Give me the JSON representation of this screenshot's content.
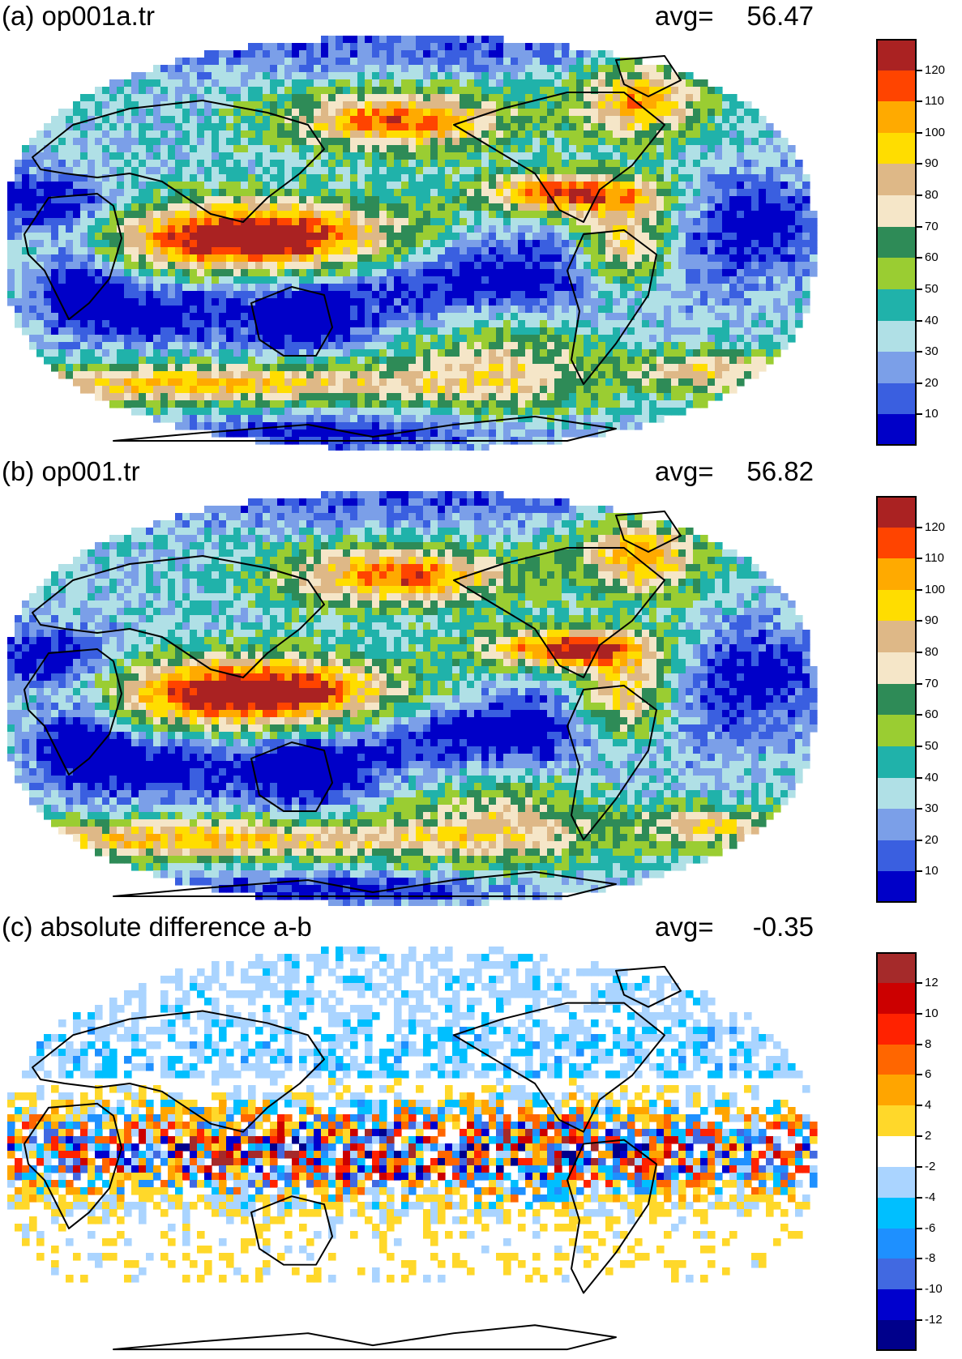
{
  "panels": [
    {
      "title": "(a) op001a.tr",
      "avg_label": "avg=",
      "avg_value": "56.47",
      "field": "a"
    },
    {
      "title": "(b) op001.tr",
      "avg_label": "avg=",
      "avg_value": "56.82",
      "field": "b"
    },
    {
      "title": "(c) absolute difference a-b",
      "avg_label": "avg=",
      "avg_value": "-0.35",
      "field": "diff"
    }
  ],
  "colorbars": {
    "abs": {
      "labels": [
        "120",
        "110",
        "100",
        "90",
        "80",
        "70",
        "60",
        "50",
        "40",
        "30",
        "20",
        "10"
      ],
      "colors": [
        "#aa2222",
        "#ff4400",
        "#ffaa00",
        "#ffdd00",
        "#deb887",
        "#f5e6c8",
        "#2e8b57",
        "#9acd32",
        "#20b2aa",
        "#b0e0e6",
        "#7b9fe8",
        "#3a5fe0",
        "#0000c8"
      ]
    },
    "diff": {
      "labels": [
        "12",
        "10",
        "8",
        "6",
        "4",
        "2",
        "-2",
        "-4",
        "-6",
        "-8",
        "-10",
        "-12"
      ],
      "colors": [
        "#a52a2a",
        "#cc0000",
        "#ff2200",
        "#ff6600",
        "#ffa500",
        "#ffd82a",
        "#ffffff",
        "#aad4ff",
        "#00bfff",
        "#1e90ff",
        "#4169e1",
        "#0000cd",
        "#00008b"
      ]
    }
  }
}
